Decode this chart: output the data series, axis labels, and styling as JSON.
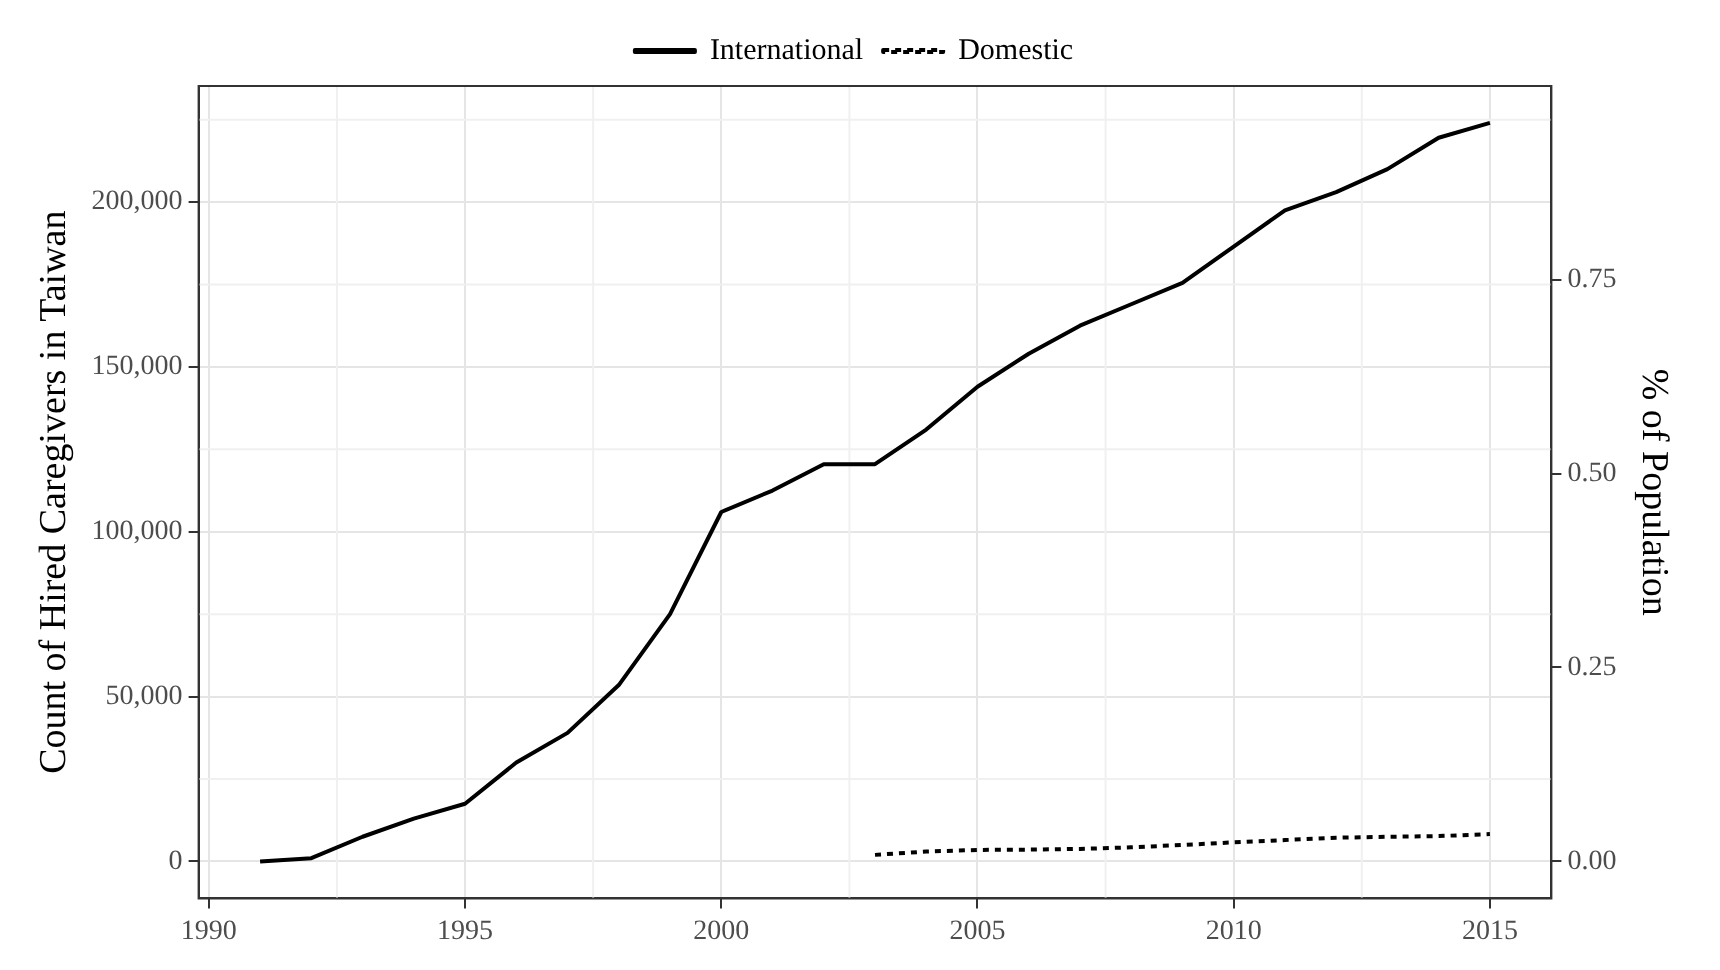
{
  "chart_data": {
    "type": "line",
    "ylabel": "Count of Hired Caregivers in Taiwan",
    "y2label": "% of Population",
    "xlim": [
      1989.8,
      2016.2
    ],
    "xticks": [
      1990,
      1995,
      2000,
      2005,
      2010,
      2015
    ],
    "ylim": [
      -11200,
      235200
    ],
    "yticks": [
      {
        "value": 0,
        "label": "0"
      },
      {
        "value": 50000,
        "label": "50,000"
      },
      {
        "value": 100000,
        "label": "100,000"
      },
      {
        "value": 150000,
        "label": "150,000"
      },
      {
        "value": 200000,
        "label": "200,000"
      }
    ],
    "y2lim": [
      -0.048,
      1.0
    ],
    "y2ticks": [
      {
        "value": 0,
        "label": "0.00"
      },
      {
        "value": 0.25,
        "label": "0.25"
      },
      {
        "value": 0.5,
        "label": "0.50"
      },
      {
        "value": 0.75,
        "label": "0.75"
      }
    ],
    "grid": true,
    "legend": "top",
    "marker": "none",
    "series": [
      {
        "name": "International",
        "color": "#000000",
        "line_style": "solid",
        "x": [
          1991,
          1992,
          1993,
          1994,
          1995,
          1996,
          1997,
          1998,
          1999,
          2000,
          2001,
          2002,
          2003,
          2004,
          2005,
          2006,
          2007,
          2008,
          2009,
          2010,
          2011,
          2012,
          2013,
          2014,
          2015
        ],
        "values": [
          0,
          1000,
          7500,
          13000,
          17500,
          30000,
          39000,
          53500,
          75000,
          106000,
          112500,
          120500,
          120500,
          131000,
          144000,
          154000,
          162500,
          169000,
          175500,
          186500,
          197500,
          203000,
          210000,
          219500,
          224000
        ]
      },
      {
        "name": "Domestic",
        "color": "#000000",
        "line_style": "dotted",
        "x": [
          2003,
          2004,
          2005,
          2006,
          2007,
          2008,
          2009,
          2010,
          2011,
          2012,
          2013,
          2014,
          2015
        ],
        "values": [
          2000,
          3000,
          3500,
          3600,
          3800,
          4300,
          5000,
          5800,
          6500,
          7200,
          7500,
          7700,
          8300
        ]
      }
    ]
  }
}
